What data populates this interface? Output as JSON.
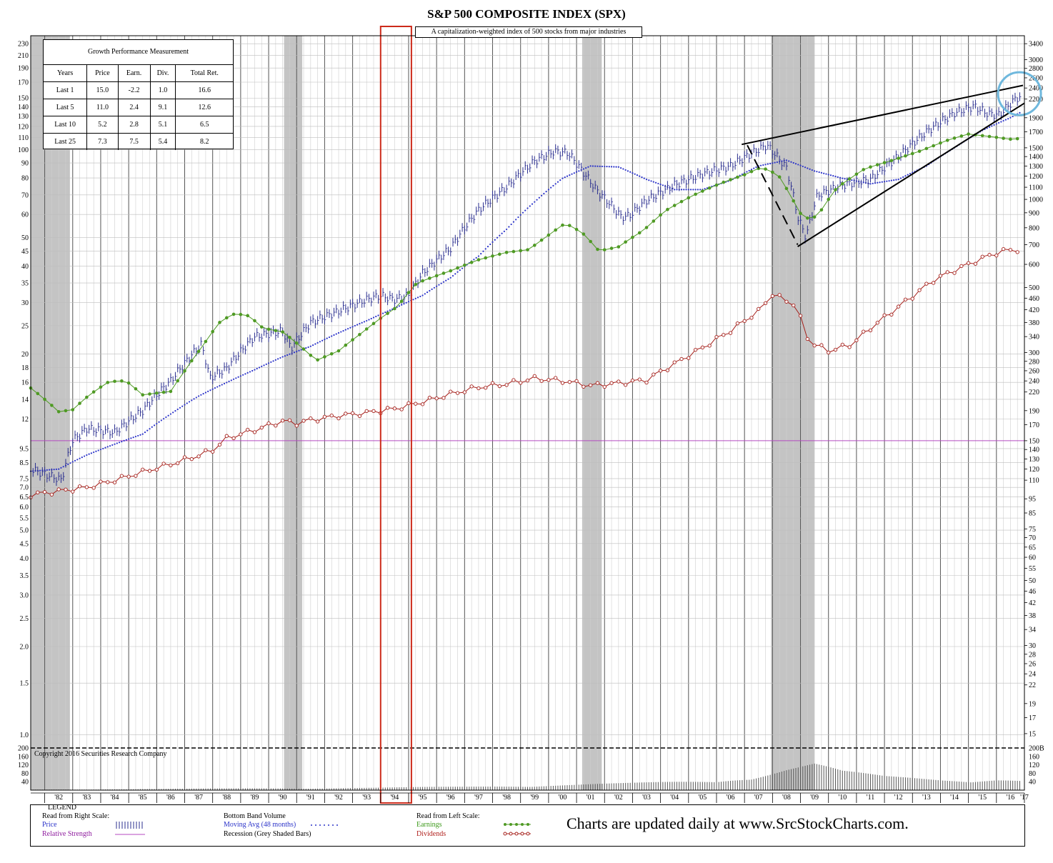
{
  "title": "S&P 500 COMPOSITE INDEX (SPX)",
  "subtitle": "A capitalization-weighted index of 500 stocks from major industries",
  "performance_table": {
    "caption": "Growth Performance Measurement",
    "headers": [
      "Years",
      "Price",
      "Earn.",
      "Div.",
      "Total Ret."
    ],
    "rows": [
      [
        "Last 1",
        "15.0",
        "-2.2",
        "1.0",
        "16.6"
      ],
      [
        "Last 5",
        "11.0",
        "2.4",
        "9.1",
        "12.6"
      ],
      [
        "Last 10",
        "5.2",
        "2.8",
        "5.1",
        "6.5"
      ],
      [
        "Last 25",
        "7.3",
        "7.5",
        "5.4",
        "8.2"
      ]
    ]
  },
  "copyright": "Copyright 2016 Securities Research Company",
  "promo": "Charts are updated daily at www.SrcStockCharts.com.",
  "legend": {
    "title": "LEGEND",
    "read_right": "Read from Right Scale:",
    "price": "Price",
    "relative_strength": "Relative Strength",
    "bottom_band": "Bottom Band Volume",
    "moving_avg": "Moving Avg (48 months)",
    "recession": "Recession (Grey Shaded Bars)",
    "read_left": "Read from Left Scale:",
    "earnings": "Earnings",
    "dividends": "Dividends"
  },
  "colors": {
    "price": "#2b2f8f",
    "moving_avg": "#2b33c9",
    "earnings": "#4f9a24",
    "dividends": "#a51f1a",
    "relative_strength": "#b44ac0",
    "recession": "#c4c4c4",
    "highlight_box": "#cc2a1a",
    "circle": "#6fb8dd"
  },
  "chart_data": {
    "type": "line",
    "x_axis_labels": [
      "'82",
      "'83",
      "'84",
      "'85",
      "'86",
      "'87",
      "'88",
      "'89",
      "'90",
      "'91",
      "'92",
      "'93",
      "'94",
      "'95",
      "'96",
      "'97",
      "'98",
      "'99",
      "'00",
      "'01",
      "'02",
      "'03",
      "'04",
      "'05",
      "'06",
      "'07",
      "'08",
      "'09",
      "'10",
      "'11",
      "'12",
      "'13",
      "'14",
      "'15",
      "'16",
      "'17"
    ],
    "x_range": [
      1981.5,
      2017.0
    ],
    "left_axis": {
      "scale": "log",
      "range": [
        0.9,
        245
      ],
      "ticks": [
        "230",
        "210",
        "190",
        "170",
        "150",
        "140",
        "130",
        "120",
        "110",
        "100",
        "90",
        "80",
        "70",
        "60",
        "50",
        "45",
        "40",
        "35",
        "30",
        "25",
        "20",
        "18",
        "16",
        "14",
        "12",
        "9.5",
        "8.5",
        "7.5",
        "7.0",
        "6.5",
        "6.0",
        "5.5",
        "5.0",
        "4.5",
        "4.0",
        "3.5",
        "3.0",
        "2.5",
        "2.0",
        "1.5",
        "1.0"
      ]
    },
    "right_axis": {
      "scale": "log",
      "range": [
        13.4,
        3620
      ],
      "ticks": [
        "3400",
        "3000",
        "2800",
        "2600",
        "2400",
        "2200",
        "1900",
        "1700",
        "1500",
        "1400",
        "1300",
        "1200",
        "1100",
        "1000",
        "900",
        "800",
        "700",
        "600",
        "500",
        "460",
        "420",
        "380",
        "340",
        "300",
        "280",
        "260",
        "240",
        "220",
        "190",
        "170",
        "150",
        "140",
        "130",
        "120",
        "110",
        "95",
        "85",
        "75",
        "70",
        "65",
        "60",
        "55",
        "50",
        "46",
        "42",
        "38",
        "34",
        "30",
        "28",
        "26",
        "24",
        "22",
        "19",
        "17",
        "15"
      ]
    },
    "volume_axis": {
      "left_ticks": [
        "200",
        "160",
        "120",
        "80",
        "40"
      ],
      "right_ticks": [
        "200B",
        "160",
        "120",
        "80",
        "40"
      ]
    },
    "recessions": [
      [
        1981.5,
        1982.9
      ],
      [
        1990.55,
        1991.2
      ],
      [
        2001.2,
        2001.9
      ],
      [
        2007.95,
        2009.5
      ]
    ],
    "highlight_year_box": [
      1994.0,
      1995.1
    ],
    "relative_strength_level": 150,
    "series": [
      {
        "name": "Price",
        "axis": "right",
        "points": [
          [
            1981.5,
            120
          ],
          [
            1982.6,
            110
          ],
          [
            1983.0,
            150
          ],
          [
            1983.5,
            165
          ],
          [
            1984.5,
            160
          ],
          [
            1985.5,
            190
          ],
          [
            1986.5,
            240
          ],
          [
            1987.6,
            320
          ],
          [
            1987.9,
            245
          ],
          [
            1988.5,
            265
          ],
          [
            1989.5,
            340
          ],
          [
            1990.5,
            355
          ],
          [
            1990.8,
            310
          ],
          [
            1991.5,
            380
          ],
          [
            1992.5,
            415
          ],
          [
            1993.5,
            455
          ],
          [
            1994.0,
            470
          ],
          [
            1994.5,
            455
          ],
          [
            1995.0,
            470
          ],
          [
            1995.5,
            560
          ],
          [
            1996.5,
            680
          ],
          [
            1997.5,
            920
          ],
          [
            1998.5,
            1100
          ],
          [
            1999.5,
            1350
          ],
          [
            2000.2,
            1460
          ],
          [
            2000.7,
            1440
          ],
          [
            2001.2,
            1250
          ],
          [
            2001.7,
            1080
          ],
          [
            2002.6,
            870
          ],
          [
            2002.9,
            880
          ],
          [
            2003.5,
            990
          ],
          [
            2004.5,
            1120
          ],
          [
            2005.5,
            1220
          ],
          [
            2006.5,
            1300
          ],
          [
            2007.5,
            1480
          ],
          [
            2007.8,
            1530
          ],
          [
            2008.5,
            1280
          ],
          [
            2008.9,
            870
          ],
          [
            2009.2,
            740
          ],
          [
            2009.6,
            1030
          ],
          [
            2010.5,
            1120
          ],
          [
            2011.5,
            1170
          ],
          [
            2012.5,
            1400
          ],
          [
            2013.5,
            1700
          ],
          [
            2014.5,
            1970
          ],
          [
            2015.2,
            2080
          ],
          [
            2015.7,
            1960
          ],
          [
            2016.1,
            1940
          ],
          [
            2016.6,
            2170
          ],
          [
            2016.9,
            2270
          ]
        ]
      },
      {
        "name": "Moving Avg (48 months)",
        "axis": "right",
        "points": [
          [
            1981.5,
            118
          ],
          [
            1982.5,
            120
          ],
          [
            1983.5,
            134
          ],
          [
            1984.5,
            146
          ],
          [
            1985.5,
            158
          ],
          [
            1986.5,
            185
          ],
          [
            1987.5,
            213
          ],
          [
            1988.5,
            237
          ],
          [
            1989.5,
            262
          ],
          [
            1990.5,
            290
          ],
          [
            1991.5,
            315
          ],
          [
            1992.5,
            350
          ],
          [
            1993.5,
            385
          ],
          [
            1994.5,
            425
          ],
          [
            1995.5,
            470
          ],
          [
            1996.5,
            540
          ],
          [
            1997.5,
            640
          ],
          [
            1998.5,
            790
          ],
          [
            1999.5,
            980
          ],
          [
            2000.5,
            1180
          ],
          [
            2001.5,
            1300
          ],
          [
            2002.5,
            1290
          ],
          [
            2003.5,
            1170
          ],
          [
            2004.5,
            1080
          ],
          [
            2005.5,
            1080
          ],
          [
            2006.5,
            1160
          ],
          [
            2007.5,
            1300
          ],
          [
            2008.5,
            1360
          ],
          [
            2009.5,
            1250
          ],
          [
            2010.5,
            1180
          ],
          [
            2011.5,
            1130
          ],
          [
            2012.5,
            1170
          ],
          [
            2013.5,
            1300
          ],
          [
            2014.5,
            1500
          ],
          [
            2015.5,
            1720
          ],
          [
            2016.5,
            1900
          ],
          [
            2016.9,
            1990
          ]
        ]
      },
      {
        "name": "Earnings",
        "axis": "left",
        "points": [
          [
            1981.5,
            15.3
          ],
          [
            1982.5,
            12.7
          ],
          [
            1983.0,
            12.9
          ],
          [
            1983.6,
            14.5
          ],
          [
            1984.3,
            16.1
          ],
          [
            1984.9,
            16.2
          ],
          [
            1985.5,
            14.5
          ],
          [
            1986.5,
            14.9
          ],
          [
            1987.0,
            17.5
          ],
          [
            1987.6,
            21.0
          ],
          [
            1988.3,
            26.0
          ],
          [
            1988.8,
            27.5
          ],
          [
            1989.3,
            27.0
          ],
          [
            1989.8,
            24.5
          ],
          [
            1990.5,
            23.8
          ],
          [
            1991.2,
            21.0
          ],
          [
            1991.7,
            19.0
          ],
          [
            1992.5,
            20.5
          ],
          [
            1993.3,
            23.5
          ],
          [
            1994.0,
            26.5
          ],
          [
            1994.6,
            29.0
          ],
          [
            1995.3,
            35.0
          ],
          [
            1996.5,
            38.5
          ],
          [
            1997.5,
            42.0
          ],
          [
            1998.5,
            44.5
          ],
          [
            1999.3,
            45.5
          ],
          [
            2000.0,
            51.0
          ],
          [
            2000.6,
            56.0
          ],
          [
            2001.2,
            52.0
          ],
          [
            2001.8,
            45.0
          ],
          [
            2002.5,
            46.5
          ],
          [
            2003.4,
            53.0
          ],
          [
            2004.2,
            62.0
          ],
          [
            2005.2,
            70.0
          ],
          [
            2006.2,
            77.0
          ],
          [
            2007.0,
            82.0
          ],
          [
            2007.6,
            87.0
          ],
          [
            2008.2,
            82.0
          ],
          [
            2008.7,
            68.0
          ],
          [
            2009.1,
            58.0
          ],
          [
            2009.6,
            59.0
          ],
          [
            2010.3,
            74.0
          ],
          [
            2011.3,
            86.0
          ],
          [
            2012.3,
            92.0
          ],
          [
            2013.3,
            99.0
          ],
          [
            2014.3,
            108.0
          ],
          [
            2015.0,
            113.0
          ],
          [
            2015.7,
            111.0
          ],
          [
            2016.5,
            108.5
          ],
          [
            2016.8,
            109.0
          ]
        ]
      },
      {
        "name": "Dividends",
        "axis": "left",
        "points": [
          [
            1981.5,
            6.6
          ],
          [
            1982.5,
            6.8
          ],
          [
            1983.5,
            7.0
          ],
          [
            1984.5,
            7.4
          ],
          [
            1985.5,
            7.9
          ],
          [
            1986.5,
            8.4
          ],
          [
            1987.5,
            9.0
          ],
          [
            1988.0,
            9.4
          ],
          [
            1988.5,
            10.3
          ],
          [
            1989.5,
            11.0
          ],
          [
            1990.5,
            11.8
          ],
          [
            1991.0,
            11.6
          ],
          [
            1991.5,
            11.9
          ],
          [
            1992.5,
            12.3
          ],
          [
            1993.5,
            12.6
          ],
          [
            1994.5,
            13.0
          ],
          [
            1995.5,
            13.7
          ],
          [
            1996.5,
            14.6
          ],
          [
            1997.5,
            15.4
          ],
          [
            1998.5,
            15.8
          ],
          [
            1999.5,
            16.5
          ],
          [
            2000.5,
            16.2
          ],
          [
            2001.5,
            15.6
          ],
          [
            2002.5,
            15.9
          ],
          [
            2003.5,
            16.3
          ],
          [
            2004.5,
            18.5
          ],
          [
            2005.5,
            21.0
          ],
          [
            2006.5,
            24.0
          ],
          [
            2007.5,
            28.0
          ],
          [
            2008.0,
            32.0
          ],
          [
            2008.8,
            29.5
          ],
          [
            2009.3,
            22.0
          ],
          [
            2010.0,
            20.5
          ],
          [
            2010.8,
            21.5
          ],
          [
            2011.5,
            24.5
          ],
          [
            2012.3,
            28.0
          ],
          [
            2013.0,
            31.5
          ],
          [
            2013.8,
            36.0
          ],
          [
            2014.6,
            39.0
          ],
          [
            2015.5,
            42.5
          ],
          [
            2016.2,
            45.0
          ],
          [
            2016.8,
            45.5
          ]
        ]
      }
    ],
    "volume_series": {
      "name": "Bottom Band Volume",
      "axis": "volume",
      "points": [
        [
          1981.5,
          2
        ],
        [
          1985.0,
          4
        ],
        [
          1990.0,
          8
        ],
        [
          1994.0,
          10
        ],
        [
          1997.0,
          14
        ],
        [
          2000.0,
          22
        ],
        [
          2003.0,
          28
        ],
        [
          2006.0,
          38
        ],
        [
          2008.5,
          95
        ],
        [
          2009.5,
          110
        ],
        [
          2010.5,
          75
        ],
        [
          2012.0,
          55
        ],
        [
          2014.0,
          48
        ],
        [
          2016.0,
          50
        ],
        [
          2016.9,
          40
        ]
      ]
    },
    "trendlines": [
      {
        "from": [
          2006.9,
          1540
        ],
        "to": [
          2016.95,
          2450
        ]
      },
      {
        "from": [
          2008.9,
          690
        ],
        "to": [
          2017.0,
          2130
        ]
      },
      {
        "from": [
          2007.1,
          1530
        ],
        "to": [
          2008.9,
          700
        ],
        "dashed": true
      }
    ]
  }
}
